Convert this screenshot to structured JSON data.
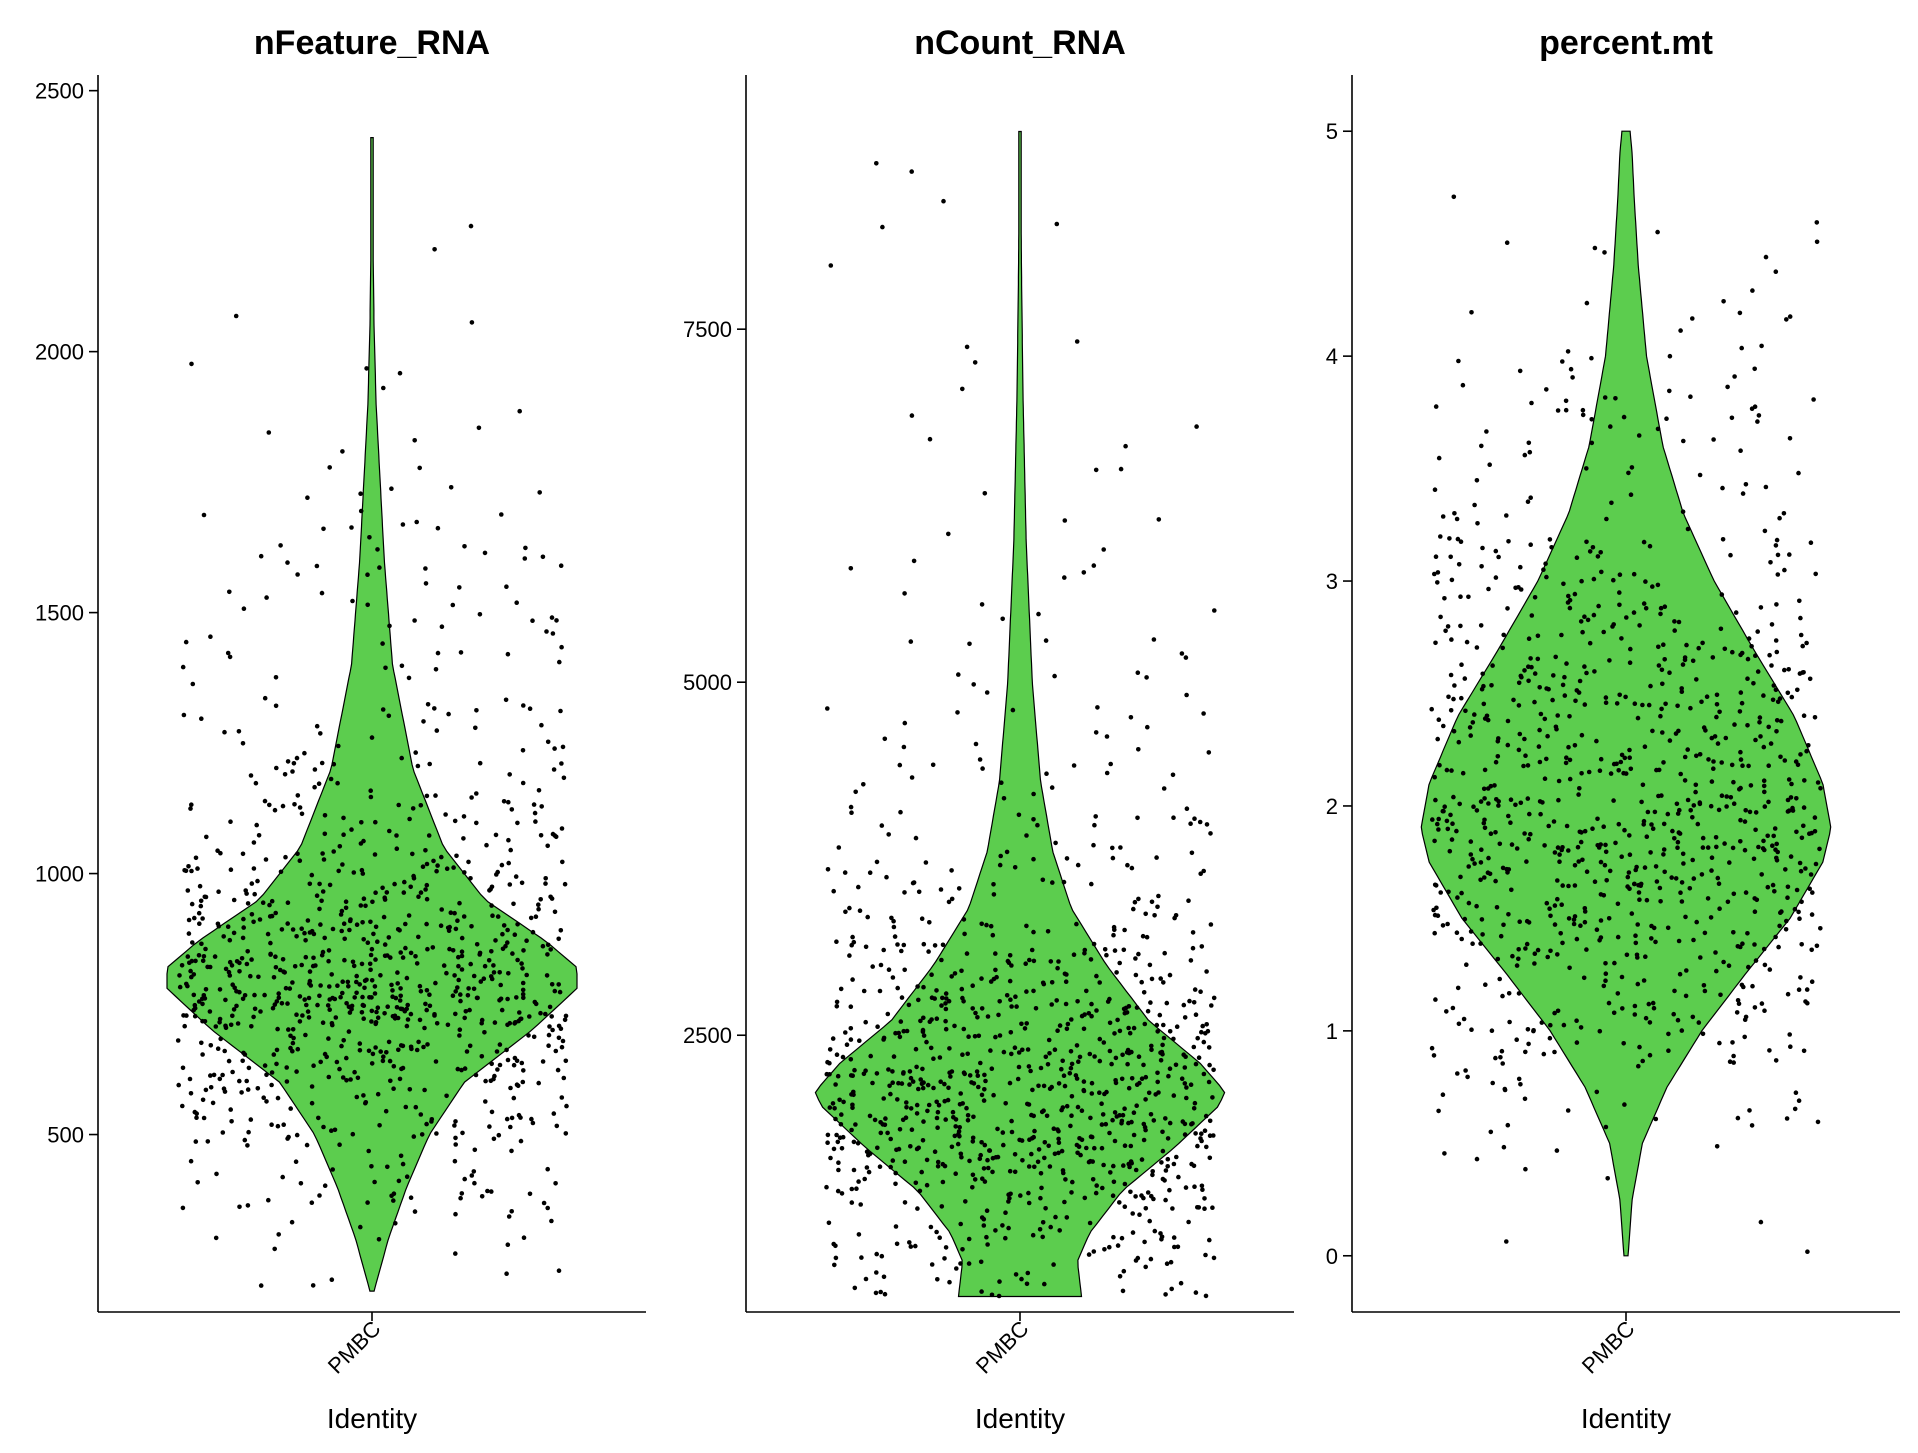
{
  "figure": {
    "colors": {
      "violin_fill": "#5ccd4e",
      "point": "#000000",
      "axis": "#000000"
    }
  },
  "chart_data": [
    {
      "type": "violin",
      "title": "nFeature_RNA",
      "xlabel": "Identity",
      "ylabel": "",
      "categories": [
        "PMBC"
      ],
      "ylim": [
        160,
        2530
      ],
      "yticks": [
        500,
        1000,
        1500,
        2000,
        2500
      ],
      "data_range": [
        200,
        2410
      ],
      "mode": 820,
      "density": [
        [
          200,
          0.01
        ],
        [
          300,
          0.08
        ],
        [
          400,
          0.17
        ],
        [
          500,
          0.28
        ],
        [
          600,
          0.45
        ],
        [
          700,
          0.78
        ],
        [
          780,
          1.0
        ],
        [
          820,
          1.0
        ],
        [
          870,
          0.85
        ],
        [
          950,
          0.55
        ],
        [
          1050,
          0.35
        ],
        [
          1200,
          0.2
        ],
        [
          1400,
          0.1
        ],
        [
          1600,
          0.06
        ],
        [
          1750,
          0.04
        ],
        [
          1900,
          0.02
        ],
        [
          2050,
          0.01
        ],
        [
          2200,
          0.005
        ],
        [
          2410,
          0.002
        ]
      ],
      "points": {
        "count": 1000,
        "jitter_width": 0.95
      }
    },
    {
      "type": "violin",
      "title": "nCount_RNA",
      "xlabel": "Identity",
      "ylabel": "",
      "categories": [
        "PMBC"
      ],
      "ylim": [
        540,
        9300
      ],
      "yticks": [
        2500,
        5000,
        7500
      ],
      "data_range": [
        650,
        8900
      ],
      "mode": 2100,
      "density": [
        [
          650,
          0.3
        ],
        [
          900,
          0.28
        ],
        [
          1100,
          0.34
        ],
        [
          1400,
          0.5
        ],
        [
          1700,
          0.75
        ],
        [
          2000,
          0.97
        ],
        [
          2100,
          1.0
        ],
        [
          2300,
          0.88
        ],
        [
          2600,
          0.63
        ],
        [
          3000,
          0.42
        ],
        [
          3400,
          0.25
        ],
        [
          3800,
          0.16
        ],
        [
          4300,
          0.1
        ],
        [
          5000,
          0.06
        ],
        [
          6000,
          0.03
        ],
        [
          7000,
          0.015
        ],
        [
          7800,
          0.008
        ],
        [
          8900,
          0.002
        ]
      ],
      "points": {
        "count": 1000,
        "jitter_width": 0.95
      }
    },
    {
      "type": "violin",
      "title": "percent.mt",
      "xlabel": "Identity",
      "ylabel": "",
      "categories": [
        "PMBC"
      ],
      "ylim": [
        -0.25,
        5.25
      ],
      "yticks": [
        0,
        1,
        2,
        3,
        4,
        5
      ],
      "data_range": [
        0,
        5
      ],
      "mode": 1.9,
      "density": [
        [
          0.0,
          0.01
        ],
        [
          0.25,
          0.03
        ],
        [
          0.5,
          0.08
        ],
        [
          0.75,
          0.2
        ],
        [
          1.0,
          0.37
        ],
        [
          1.25,
          0.58
        ],
        [
          1.5,
          0.8
        ],
        [
          1.75,
          0.96
        ],
        [
          1.9,
          1.0
        ],
        [
          2.1,
          0.96
        ],
        [
          2.4,
          0.82
        ],
        [
          2.7,
          0.62
        ],
        [
          3.0,
          0.43
        ],
        [
          3.3,
          0.28
        ],
        [
          3.6,
          0.18
        ],
        [
          4.0,
          0.1
        ],
        [
          4.4,
          0.06
        ],
        [
          4.7,
          0.04
        ],
        [
          4.9,
          0.03
        ],
        [
          5.0,
          0.02
        ]
      ],
      "points": {
        "count": 1000,
        "jitter_width": 0.95
      }
    }
  ]
}
